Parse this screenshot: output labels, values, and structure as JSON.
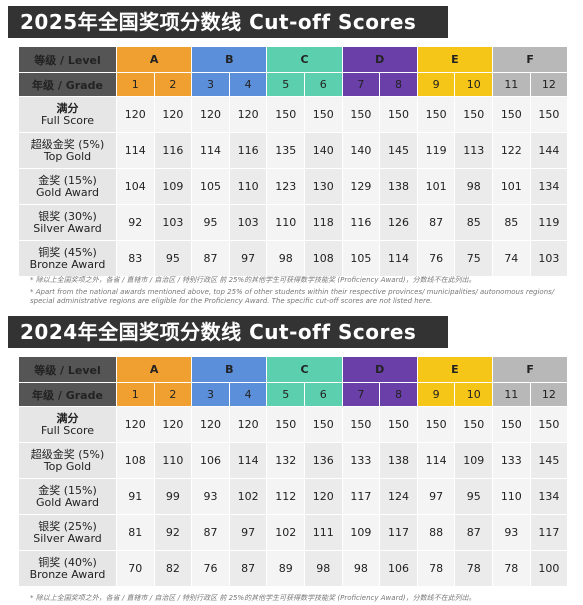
{
  "colors": {
    "A": "#f0a030",
    "B": "#5b8fd9",
    "C": "#5ccfae",
    "D": "#6a3fa8",
    "E": "#f5c518",
    "F": "#b8b8b8",
    "header": "#555555",
    "full_score": "#d8232a"
  },
  "tables": [
    {
      "title": "2025年全国奖项分数线 Cut-off Scores",
      "level_label": "等级 / Level",
      "grade_label": "年级 / Grade",
      "levels": [
        "A",
        "B",
        "C",
        "D",
        "E",
        "F"
      ],
      "grades": [
        "1",
        "2",
        "3",
        "4",
        "5",
        "6",
        "7",
        "8",
        "9",
        "10",
        "11",
        "12"
      ],
      "rows": [
        {
          "zh": "满分",
          "en": "Full Score",
          "full": true,
          "values": [
            "120",
            "120",
            "120",
            "120",
            "150",
            "150",
            "150",
            "150",
            "150",
            "150",
            "150",
            "150"
          ]
        },
        {
          "zh": "超级金奖 (5%)",
          "en": "Top Gold",
          "values": [
            "114",
            "116",
            "114",
            "116",
            "135",
            "140",
            "140",
            "145",
            "119",
            "113",
            "122",
            "144"
          ]
        },
        {
          "zh": "金奖 (15%)",
          "en": "Gold Award",
          "values": [
            "104",
            "109",
            "105",
            "110",
            "123",
            "130",
            "129",
            "138",
            "101",
            "98",
            "101",
            "134"
          ]
        },
        {
          "zh": "银奖 (30%)",
          "en": "Silver Award",
          "values": [
            "92",
            "103",
            "95",
            "103",
            "110",
            "118",
            "116",
            "126",
            "87",
            "85",
            "85",
            "119"
          ]
        },
        {
          "zh": "铜奖 (45%)",
          "en": "Bronze Award",
          "values": [
            "83",
            "95",
            "87",
            "97",
            "98",
            "108",
            "105",
            "114",
            "76",
            "75",
            "74",
            "103"
          ]
        }
      ],
      "footnote_zh": "* 除以上全国奖项之外，各省 / 直辖市 / 自治区 / 特别行政区 前 25%的其他学生可获得数学技能奖 (Proficiency Award)，分数线不在此列出。",
      "footnote_en": "* Apart from the national awards mentioned above, top 25% of other students within their respective provinces/ municipalities/ autonomous regions/ special administrative regions are eligible for the Proficiency Award. The specific cut-off scores are not listed here."
    },
    {
      "title": "2024年全国奖项分数线 Cut-off Scores",
      "level_label": "等级 / Level",
      "grade_label": "年级 / Grade",
      "levels": [
        "A",
        "B",
        "C",
        "D",
        "E",
        "F"
      ],
      "grades": [
        "1",
        "2",
        "3",
        "4",
        "5",
        "6",
        "7",
        "8",
        "9",
        "10",
        "11",
        "12"
      ],
      "rows": [
        {
          "zh": "满分",
          "en": "Full Score",
          "full": true,
          "values": [
            "120",
            "120",
            "120",
            "120",
            "150",
            "150",
            "150",
            "150",
            "150",
            "150",
            "150",
            "150"
          ]
        },
        {
          "zh": "超级金奖 (5%)",
          "en": "Top Gold",
          "values": [
            "108",
            "110",
            "106",
            "114",
            "132",
            "136",
            "133",
            "138",
            "114",
            "109",
            "133",
            "145"
          ]
        },
        {
          "zh": "金奖 (15%)",
          "en": "Gold Award",
          "values": [
            "91",
            "99",
            "93",
            "102",
            "112",
            "120",
            "117",
            "124",
            "97",
            "95",
            "110",
            "134"
          ]
        },
        {
          "zh": "银奖 (25%)",
          "en": "Silver Award",
          "values": [
            "81",
            "92",
            "87",
            "97",
            "102",
            "111",
            "109",
            "117",
            "88",
            "87",
            "93",
            "117"
          ]
        },
        {
          "zh": "铜奖 (40%)",
          "en": "Bronze Award",
          "values": [
            "70",
            "82",
            "76",
            "87",
            "89",
            "98",
            "98",
            "106",
            "78",
            "78",
            "78",
            "100"
          ]
        }
      ],
      "footnote_zh": "* 除以上全国奖项之外，各省 / 直辖市 / 自治区 / 特别行政区 前 25%的其他学生可获得数学技能奖 (Proficiency Award)，分数线不在此列出。"
    }
  ]
}
